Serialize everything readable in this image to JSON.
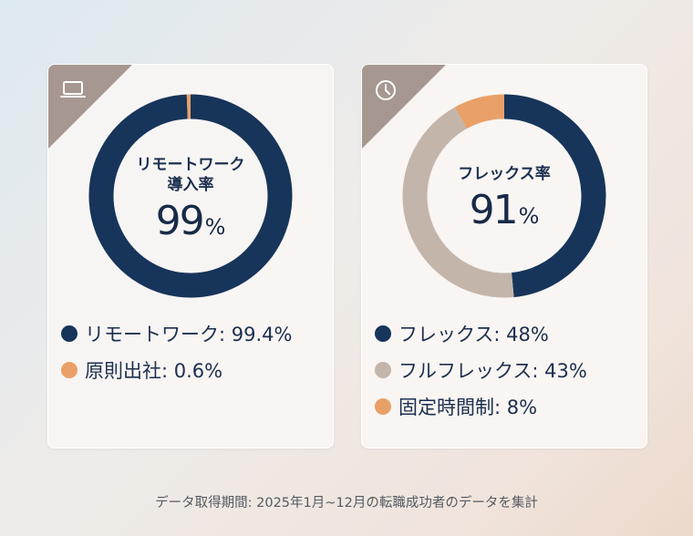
{
  "colors": {
    "navy": "#17345a",
    "orange": "#e9a068",
    "taupe": "#c4b5ab",
    "corner": "#a69890"
  },
  "cards": [
    {
      "icon": "laptop-icon",
      "center_label_line1": "リモートワーク",
      "center_label_line2": "導入率",
      "center_value": "99",
      "center_unit": "%",
      "legend": [
        {
          "label": "リモートワーク: 99.4%",
          "color": "#17345a"
        },
        {
          "label": "原則出社: 0.6%",
          "color": "#e9a068"
        }
      ]
    },
    {
      "icon": "clock-icon",
      "center_label_line1": "フレックス率",
      "center_value": "91",
      "center_unit": "%",
      "legend": [
        {
          "label": "フレックス: 48%",
          "color": "#17345a"
        },
        {
          "label": "フルフレックス: 43%",
          "color": "#c4b5ab"
        },
        {
          "label": "固定時間制: 8%",
          "color": "#e9a068"
        }
      ]
    }
  ],
  "footnote": "データ取得期間: 2025年1月~12月の転職成功者のデータを集計",
  "chart_data": [
    {
      "type": "pie",
      "categories": [
        "リモートワーク",
        "原則出社"
      ],
      "values": [
        99.4,
        0.6
      ],
      "colors": [
        "#17345a",
        "#e9a068"
      ],
      "title": "リモートワーク導入率 99%"
    },
    {
      "type": "pie",
      "categories": [
        "フレックス",
        "フルフレックス",
        "固定時間制"
      ],
      "values": [
        48,
        43,
        8
      ],
      "colors": [
        "#17345a",
        "#c4b5ab",
        "#e9a068"
      ],
      "title": "フレックス率 91%"
    }
  ]
}
